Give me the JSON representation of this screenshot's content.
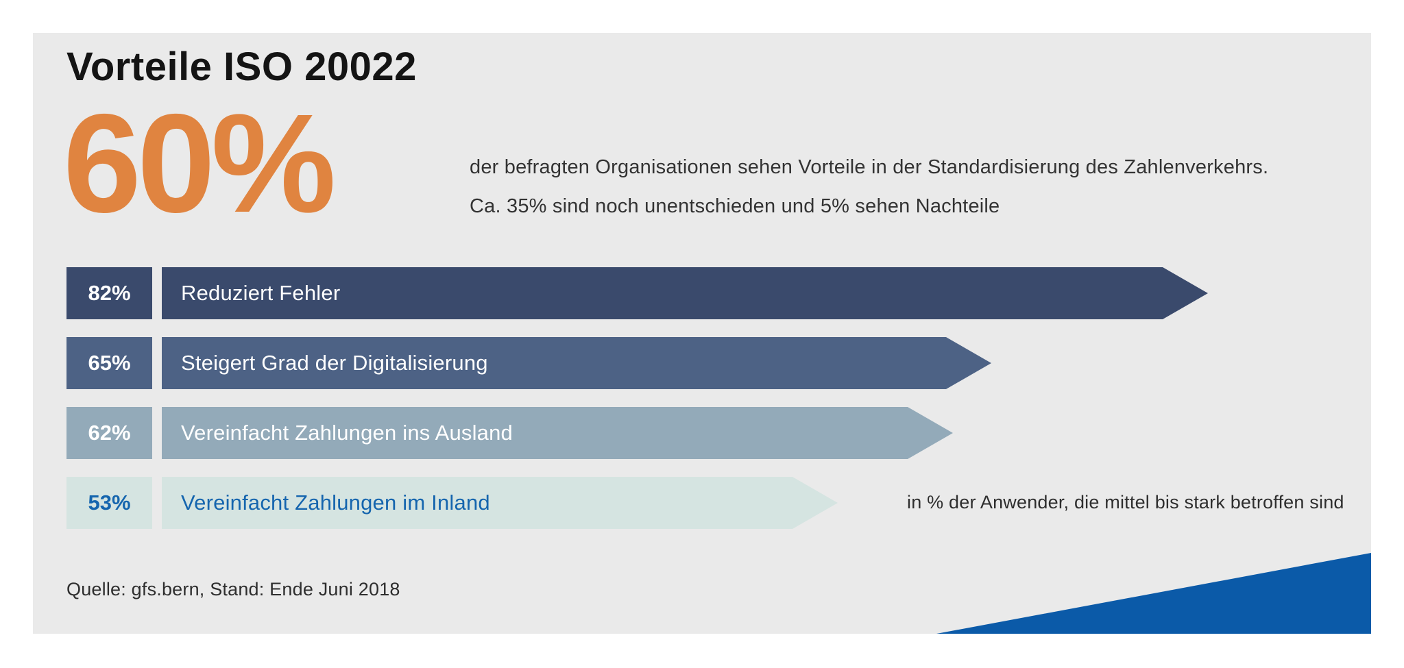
{
  "panel": {
    "title": "Vorteile ISO 20022",
    "hero": {
      "value": "60%",
      "line1": "der befragten Organisationen sehen Vorteile in der Standardisierung des Zahlenverkehrs.",
      "line2": "Ca. 35% sind noch unentschieden und 5% sehen Nachteile"
    },
    "footnote": "in % der Anwender, die mittel bis stark betroffen sind",
    "source": "Quelle: gfs.bern, Stand: Ende Juni 2018"
  },
  "chart_data": {
    "type": "bar",
    "orientation": "horizontal",
    "title": "Vorteile ISO 20022",
    "unit": "%",
    "annotation": "in % der Anwender, die mittel bis stark betroffen sind",
    "highlight_stat": {
      "value": 60,
      "label": "60%",
      "description": "der befragten Organisationen sehen Vorteile in der Standardisierung des Zahlenverkehrs. Ca. 35% sind noch unentschieden und 5% sehen Nachteile"
    },
    "categories": [
      "Reduziert Fehler",
      "Steigert Grad der Digitalisierung",
      "Vereinfacht Zahlungen ins Ausland",
      "Vereinfacht Zahlungen im Inland"
    ],
    "values": [
      82,
      65,
      62,
      53
    ],
    "x_max_value": 82,
    "rows": [
      {
        "label": "Reduziert Fehler",
        "value": 82,
        "value_label": "82%",
        "bar_color": "#3A4A6C",
        "text_color": "#FFFFFF"
      },
      {
        "label": "Steigert Grad der Digitalisierung",
        "value": 65,
        "value_label": "65%",
        "bar_color": "#4D6285",
        "text_color": "#FFFFFF"
      },
      {
        "label": "Vereinfacht Zahlungen ins Ausland",
        "value": 62,
        "value_label": "62%",
        "bar_color": "#93AAB9",
        "text_color": "#FFFFFF"
      },
      {
        "label": "Vereinfacht Zahlungen im Inland",
        "value": 53,
        "value_label": "53%",
        "bar_color": "#D5E4E1",
        "text_color": "#1565AE"
      }
    ]
  },
  "colors": {
    "accent_orange": "#E08440",
    "corner_triangle_blue": "#0B5AA8",
    "panel_background": "#EAEAEA",
    "page_background": "#FFFFFF"
  }
}
